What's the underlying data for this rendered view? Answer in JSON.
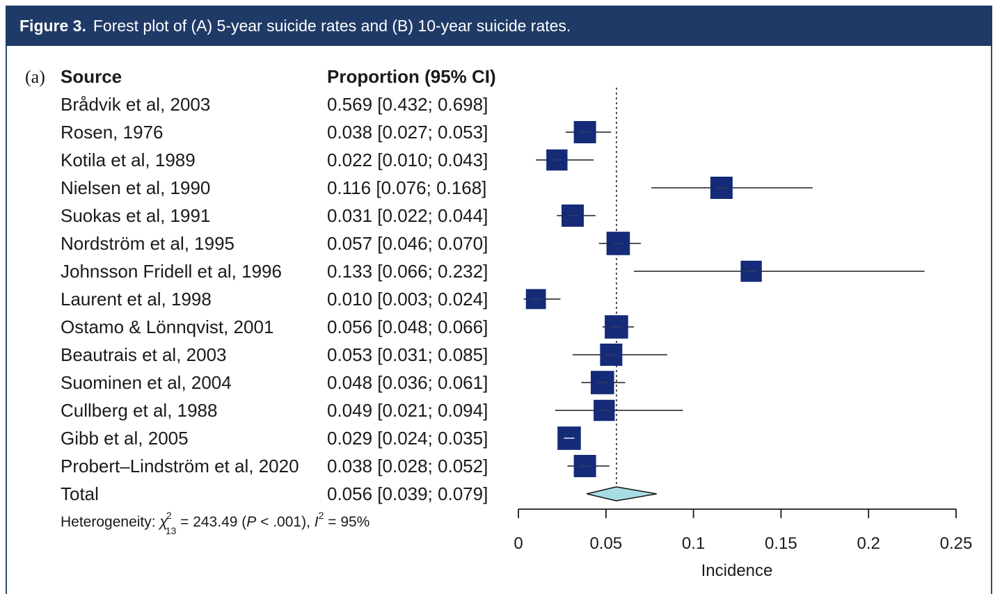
{
  "figure": {
    "label": "Figure 3.",
    "caption": "Forest plot of (A) 5-year suicide rates and (B) 10-year suicide rates."
  },
  "panel_label": "(a)",
  "columns": {
    "source": "Source",
    "estimate": "Proportion (95% CI)"
  },
  "colors": {
    "header_bg": "#1f3a66",
    "box": "#152b78",
    "diamond": "#a8dde6"
  },
  "chart_data": {
    "type": "forest",
    "xlabel": "Incidence",
    "xlim": [
      0,
      0.25
    ],
    "xticks": [
      "0",
      "0.05",
      "0.1",
      "0.15",
      "0.2",
      "0.25"
    ],
    "reference_line": 0.056,
    "studies": [
      {
        "source": "Brådvik et al, 2003",
        "ci_text": "0.569 [0.432; 0.698]",
        "est": 0.569,
        "lo": 0.432,
        "hi": 0.698,
        "weight": 0
      },
      {
        "source": "Rosen, 1976",
        "ci_text": "0.038 [0.027; 0.053]",
        "est": 0.038,
        "lo": 0.027,
        "hi": 0.053,
        "weight": 1.0
      },
      {
        "source": "Kotila et al, 1989",
        "ci_text": "0.022 [0.010; 0.043]",
        "est": 0.022,
        "lo": 0.01,
        "hi": 0.043,
        "weight": 0.95
      },
      {
        "source": "Nielsen et al, 1990",
        "ci_text": "0.116 [0.076; 0.168]",
        "est": 0.116,
        "lo": 0.076,
        "hi": 0.168,
        "weight": 1.0
      },
      {
        "source": "Suokas et al, 1991",
        "ci_text": "0.031 [0.022; 0.044]",
        "est": 0.031,
        "lo": 0.022,
        "hi": 0.044,
        "weight": 1.0
      },
      {
        "source": "Nordström et al, 1995",
        "ci_text": "0.057 [0.046; 0.070]",
        "est": 0.057,
        "lo": 0.046,
        "hi": 0.07,
        "weight": 1.05
      },
      {
        "source": "Johnsson Fridell et al, 1996",
        "ci_text": "0.133 [0.066; 0.232]",
        "est": 0.133,
        "lo": 0.066,
        "hi": 0.232,
        "weight": 0.95
      },
      {
        "source": "Laurent et al, 1998",
        "ci_text": "0.010 [0.003; 0.024]",
        "est": 0.01,
        "lo": 0.003,
        "hi": 0.024,
        "weight": 0.9
      },
      {
        "source": "Ostamo & Lönnqvist, 2001",
        "ci_text": "0.056 [0.048; 0.066]",
        "est": 0.056,
        "lo": 0.048,
        "hi": 0.066,
        "weight": 1.05
      },
      {
        "source": "Beautrais et al, 2003",
        "ci_text": "0.053 [0.031; 0.085]",
        "est": 0.053,
        "lo": 0.031,
        "hi": 0.085,
        "weight": 1.0
      },
      {
        "source": "Suominen et al, 2004",
        "ci_text": "0.048 [0.036; 0.061]",
        "est": 0.048,
        "lo": 0.036,
        "hi": 0.061,
        "weight": 1.05
      },
      {
        "source": "Cullberg et al, 1988",
        "ci_text": "0.049 [0.021; 0.094]",
        "est": 0.049,
        "lo": 0.021,
        "hi": 0.094,
        "weight": 0.95
      },
      {
        "source": "Gibb et al, 2005",
        "ci_text": "0.029 [0.024; 0.035]",
        "est": 0.029,
        "lo": 0.024,
        "hi": 0.035,
        "weight": 1.05
      },
      {
        "source": "Probert–Lindström et al, 2020",
        "ci_text": "0.038 [0.028; 0.052]",
        "est": 0.038,
        "lo": 0.028,
        "hi": 0.052,
        "weight": 1.0
      }
    ],
    "total": {
      "source": "Total",
      "ci_text": "0.056 [0.039; 0.079]",
      "est": 0.056,
      "lo": 0.039,
      "hi": 0.079
    },
    "heterogeneity": {
      "prefix": "Heterogeneity: ",
      "chi": "χ",
      "chi_sup": "2",
      "chi_sub": "13",
      "stat": " = 243.49 (",
      "p_letter": "P",
      "p_value": " < .001), ",
      "i_letter": "I",
      "i_sup": "2",
      "i_value": " = 95%"
    }
  }
}
